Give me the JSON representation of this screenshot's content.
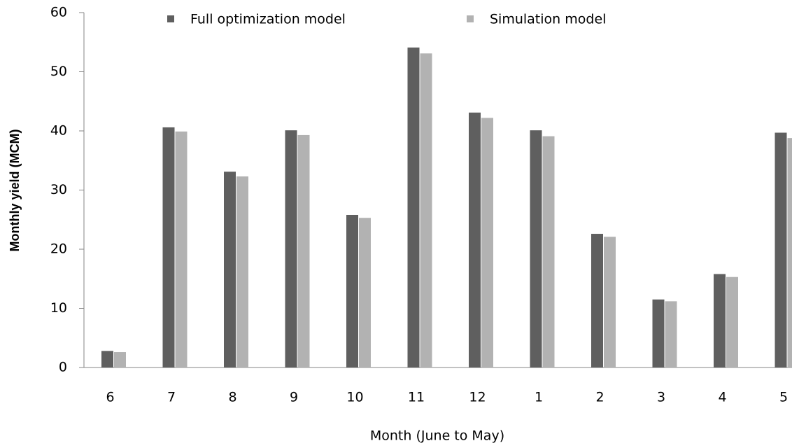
{
  "chart_data": {
    "type": "bar",
    "xlabel": "Month (June to May)",
    "ylabel": "Monthly  yield (MCM)",
    "categories": [
      "6",
      "7",
      "8",
      "9",
      "10",
      "11",
      "12",
      "1",
      "2",
      "3",
      "4",
      "5"
    ],
    "series": [
      {
        "name": "Full optimization model",
        "color": "#5f5f5f",
        "values": [
          2.8,
          40.6,
          33.1,
          40.1,
          25.8,
          54.1,
          43.1,
          40.1,
          22.6,
          11.5,
          15.8,
          39.7
        ]
      },
      {
        "name": "Simulation model",
        "color": "#b2b2b2",
        "values": [
          2.6,
          39.9,
          32.3,
          39.3,
          25.3,
          53.1,
          42.2,
          39.1,
          22.1,
          11.2,
          15.3,
          38.8
        ]
      }
    ],
    "ylim": [
      0,
      60
    ],
    "yticks": [
      0,
      10,
      20,
      30,
      40,
      50,
      60
    ],
    "grid": false,
    "legend": "top"
  }
}
